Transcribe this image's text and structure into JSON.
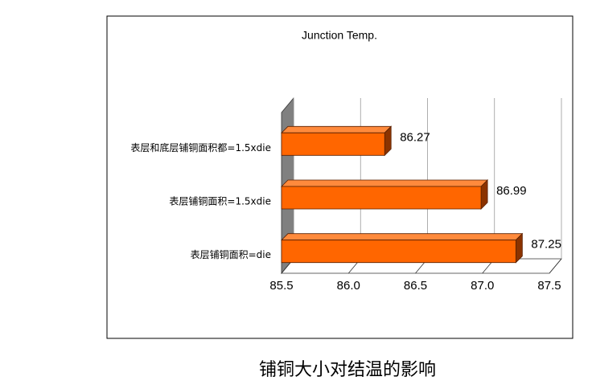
{
  "chart_data": {
    "type": "bar",
    "orientation": "horizontal",
    "title": "Junction Temp.",
    "caption": "铺铜大小对结温的影响",
    "categories": [
      "表层和底层铺铜面积都=1.5xdie",
      "表层铺铜面积=1.5xdie",
      "表层铺铜面积=die"
    ],
    "values": [
      86.27,
      86.99,
      87.25
    ],
    "color": "#ff6600",
    "xlim": [
      85.5,
      87.5
    ],
    "xticks": [
      85.5,
      {
        "value": 86,
        "label": "86.0"
      },
      86.5,
      {
        "value": 87,
        "label": "87.0"
      },
      87.5
    ],
    "grid": true
  }
}
